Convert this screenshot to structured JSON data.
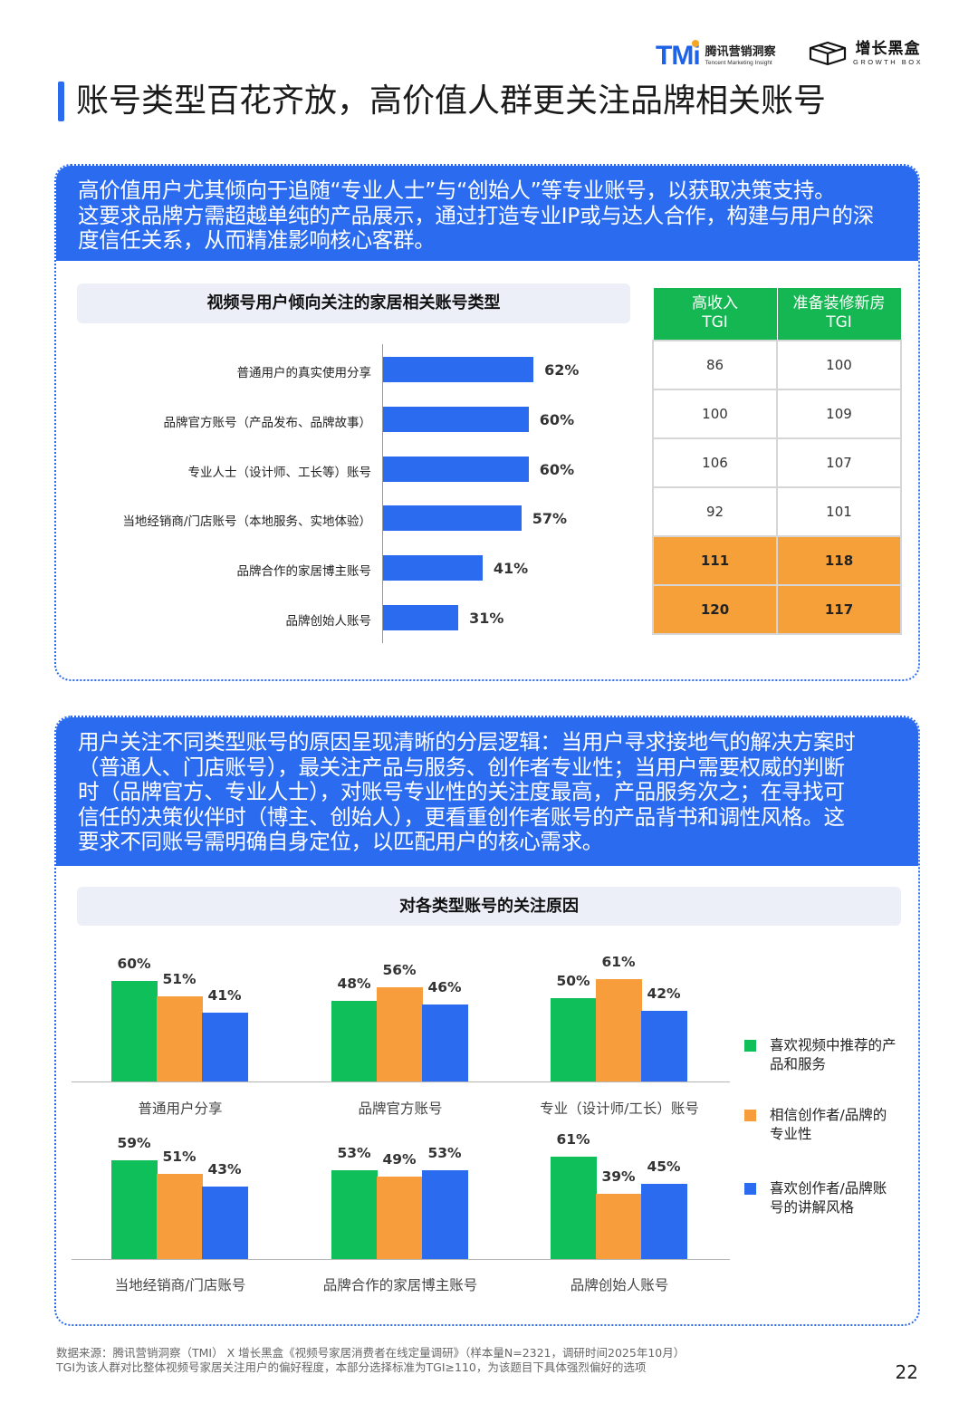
{
  "header": {
    "tmi_mark": "TM",
    "tmi_dot": "i",
    "tmi_cn": "腾讯营销洞察",
    "tmi_en": "Tencent Marketing Insight",
    "gb_cn": "增长黑盒",
    "gb_en": "GROWTH BOX"
  },
  "page_title": "账号类型百花齐放，高价值人群更关注品牌相关账号",
  "section1": {
    "lead_lines": [
      "高价值用户尤其倾向于追随“专业人士”与“创始人”等专业账号，以获取决策支持。",
      "这要求品牌方需超越单纯的产品展示，通过打造专业IP或与达人合作，构建与用户的深",
      "度信任关系，从而精准影响核心客群。"
    ],
    "chart_title": "视频号用户倾向关注的家居相关账号类型",
    "table_headers": [
      "高收入\nTGI",
      "准备装修新房\nTGI"
    ],
    "table_rows": [
      [
        "86",
        "100"
      ],
      [
        "100",
        "109"
      ],
      [
        "106",
        "107"
      ],
      [
        "92",
        "101"
      ],
      [
        "111",
        "118"
      ],
      [
        "120",
        "117"
      ]
    ],
    "highlight_rows": [
      4,
      5
    ]
  },
  "section2": {
    "lead_lines": [
      "用户关注不同类型账号的原因呈现清晰的分层逻辑：当用户寻求接地气的解决方案时",
      "（普通人、门店账号），最关注产品与服务、创作者专业性；当用户需要权威的判断",
      "时（品牌官方、专业人士），对账号专业性的关注度最高，产品服务次之；在寻找可",
      "信任的决策伙伴时（博主、创始人），更看重创作者账号的产品背书和调性风格。这",
      "要求不同账号需明确自身定位，以匹配用户的核心需求。"
    ],
    "chart_title": "对各类型账号的关注原因"
  },
  "chart_data": [
    {
      "type": "bar",
      "orientation": "horizontal",
      "title": "视频号用户倾向关注的家居相关账号类型",
      "categories": [
        "普通用户的真实使用分享",
        "品牌官方账号（产品发布、品牌故事）",
        "专业人士（设计师、工长等）账号",
        "当地经销商/门店账号（本地服务、实地体验）",
        "品牌合作的家居博主账号",
        "品牌创始人账号"
      ],
      "values": [
        62,
        60,
        60,
        57,
        41,
        31
      ],
      "value_labels": [
        "62%",
        "60%",
        "60%",
        "57%",
        "41%",
        "31%"
      ],
      "unit": "%",
      "color": "#2a6bf0"
    },
    {
      "type": "bar",
      "title": "对各类型账号的关注原因",
      "categories": [
        "普通用户分享",
        "品牌官方账号",
        "专业（设计师/工长）账号",
        "当地经销商/门店账号",
        "品牌合作的家居博主账号",
        "品牌创始人账号"
      ],
      "series": [
        {
          "name": "喜欢视频中推荐的产品和服务",
          "color": "#0fbf5a",
          "values": [
            60,
            48,
            50,
            59,
            53,
            61
          ]
        },
        {
          "name": "相信创作者/品牌的专业性",
          "color": "#f79d3c",
          "values": [
            51,
            56,
            61,
            51,
            49,
            39
          ]
        },
        {
          "name": "喜欢创作者/品牌账号的讲解风格",
          "color": "#2a6bf0",
          "values": [
            41,
            46,
            42,
            43,
            53,
            45
          ]
        }
      ],
      "unit": "%",
      "legend_position": "right"
    }
  ],
  "footer": {
    "line1": "数据来源：腾讯营销洞察（TMI） X 增长黑盒《视频号家居消费者在线定量调研》（样本量N=2321，调研时间2025年10月）",
    "line2": "TGI为该人群对比整体视频号家居关注用户的偏好程度，本部分选择标准为TGI≥110，为该题目下具体强烈偏好的选项",
    "page_number": "22"
  }
}
